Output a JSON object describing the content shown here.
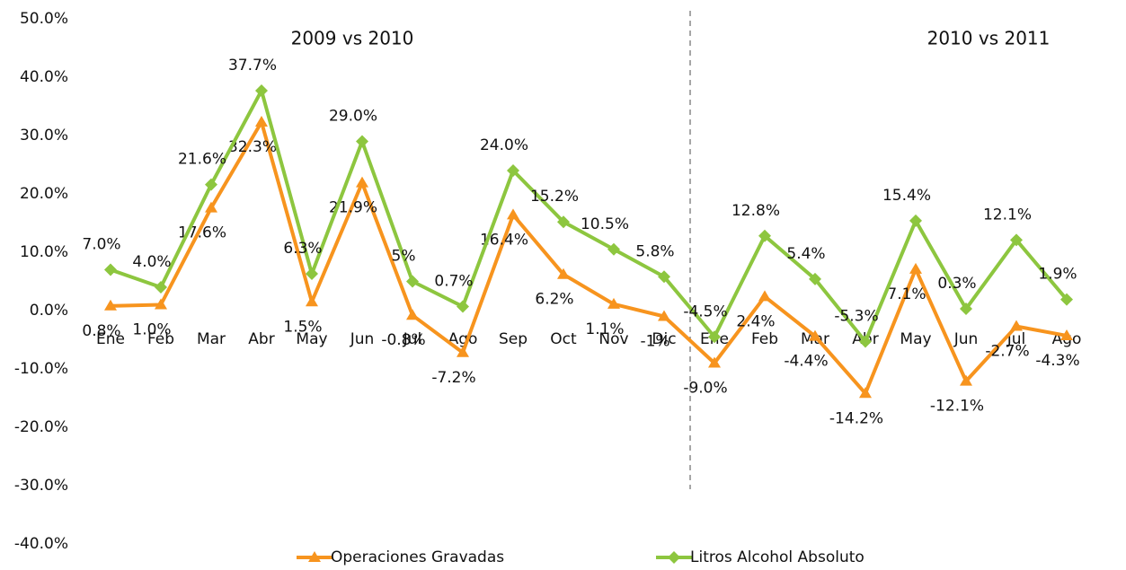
{
  "chart_data": {
    "type": "line",
    "categories": [
      "Ene",
      "Feb",
      "Mar",
      "Abr",
      "May",
      "Jun",
      "Jul",
      "Ago",
      "Sep",
      "Oct",
      "Nov",
      "Dic",
      "Ene",
      "Feb",
      "Mar",
      "Abr",
      "May",
      "Jun",
      "Jul",
      "Ago"
    ],
    "series": [
      {
        "name": "Operaciones Gravadas",
        "color": "#f7941e",
        "marker": "triangle",
        "values": [
          0.8,
          1.0,
          17.6,
          32.3,
          1.5,
          21.9,
          -0.8,
          -7.2,
          16.4,
          6.2,
          1.1,
          -1,
          -9.0,
          2.4,
          -4.4,
          -14.2,
          7.1,
          -12.1,
          -2.7,
          -4.3
        ],
        "value_labels": [
          "0.8%",
          "1.0%",
          "17.6%",
          "32.3%",
          "1.5%",
          "21.9%",
          "-0.8%",
          "-7.2%",
          "16.4%",
          "6.2%",
          "1.1%",
          "-1%",
          "-9.0%",
          "2.4%",
          "-4.4%",
          "-14.2%",
          "7.1%",
          "-12.1%",
          "-2.7%",
          "-4.3%"
        ]
      },
      {
        "name": "Litros Alcohol Absoluto",
        "color": "#8dc63f",
        "marker": "diamond",
        "values": [
          7.0,
          4.0,
          21.6,
          37.7,
          6.3,
          29.0,
          5,
          0.7,
          24.0,
          15.2,
          10.5,
          5.8,
          -4.5,
          12.8,
          5.4,
          -5.3,
          15.4,
          0.3,
          12.1,
          1.9
        ],
        "value_labels": [
          "7.0%",
          "4.0%",
          "21.6%",
          "37.7%",
          "6.3%",
          "29.0%",
          "5%",
          "0.7%",
          "24.0%",
          "15.2%",
          "10.5%",
          "5.8%",
          "-4.5%",
          "12.8%",
          "5.4%",
          "-5.3%",
          "15.4%",
          "0.3%",
          "12.1%",
          "1.9%"
        ]
      }
    ],
    "annotations": [
      "2009 vs 2010",
      "2010 vs 2011"
    ],
    "ylim": [
      -40,
      50
    ],
    "yticks": [
      {
        "value": -40,
        "label": "-40.0%"
      },
      {
        "value": -30,
        "label": "-30.0%"
      },
      {
        "value": -20,
        "label": "-20.0%"
      },
      {
        "value": -10,
        "label": "-10.0%"
      },
      {
        "value": 0,
        "label": "0.0%"
      },
      {
        "value": 10,
        "label": "10.0%"
      },
      {
        "value": 20,
        "label": "20.0%"
      },
      {
        "value": 30,
        "label": "30.0%"
      },
      {
        "value": 40,
        "label": "40.0%"
      },
      {
        "value": 50,
        "label": "50.0%"
      }
    ],
    "legend": "bottom"
  }
}
